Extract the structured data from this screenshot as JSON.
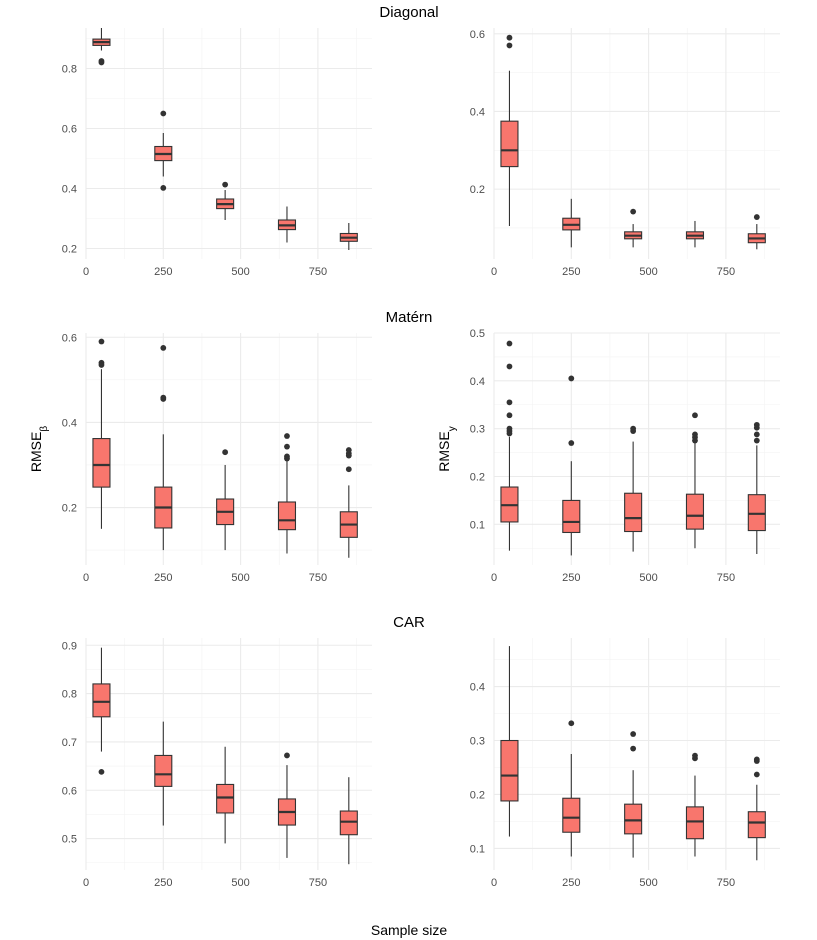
{
  "figure": {
    "xlabel": "Sample size",
    "colors": {
      "box_fill": "#F8766D",
      "box_stroke": "#333333",
      "grid_major": "#ebebeb",
      "grid_minor": "#f3f3f3",
      "outlier": "#333333"
    }
  },
  "sections": [
    {
      "title": "Diagonal"
    },
    {
      "title": "Matérn"
    },
    {
      "title": "CAR"
    }
  ],
  "chart_data": [
    {
      "type": "box",
      "section": "Diagonal",
      "panel": "left",
      "ylabel": "",
      "ylabel_sub": "",
      "xlim": [
        0,
        925
      ],
      "ylim": [
        0.165,
        0.935
      ],
      "xticks": [
        0,
        250,
        500,
        750
      ],
      "yticks": [
        0.2,
        0.4,
        0.6,
        0.8
      ],
      "ytick_labels": [
        "0.2",
        "0.4",
        "0.6",
        "0.8"
      ],
      "boxes": [
        {
          "x": 50,
          "lower": 0.86,
          "q1": 0.877,
          "median": 0.888,
          "q3": 0.898,
          "upper": 0.935,
          "outliers": [
            0.825,
            0.82
          ]
        },
        {
          "x": 250,
          "lower": 0.44,
          "q1": 0.493,
          "median": 0.515,
          "q3": 0.54,
          "upper": 0.585,
          "outliers": [
            0.65,
            0.402
          ]
        },
        {
          "x": 450,
          "lower": 0.295,
          "q1": 0.333,
          "median": 0.348,
          "q3": 0.365,
          "upper": 0.395,
          "outliers": [
            0.413
          ]
        },
        {
          "x": 650,
          "lower": 0.22,
          "q1": 0.263,
          "median": 0.277,
          "q3": 0.295,
          "upper": 0.34,
          "outliers": []
        },
        {
          "x": 850,
          "lower": 0.195,
          "q1": 0.224,
          "median": 0.236,
          "q3": 0.25,
          "upper": 0.285,
          "outliers": []
        }
      ]
    },
    {
      "type": "box",
      "section": "Diagonal",
      "panel": "right",
      "ylabel": "",
      "ylabel_sub": "",
      "xlim": [
        0,
        925
      ],
      "ylim": [
        0.02,
        0.615
      ],
      "xticks": [
        0,
        250,
        500,
        750
      ],
      "yticks": [
        0.2,
        0.4,
        0.6
      ],
      "ytick_labels": [
        "0.2",
        "0.4",
        "0.6"
      ],
      "boxes": [
        {
          "x": 50,
          "lower": 0.105,
          "q1": 0.258,
          "median": 0.3,
          "q3": 0.375,
          "upper": 0.505,
          "outliers": [
            0.59,
            0.57
          ]
        },
        {
          "x": 250,
          "lower": 0.05,
          "q1": 0.095,
          "median": 0.108,
          "q3": 0.125,
          "upper": 0.175,
          "outliers": []
        },
        {
          "x": 450,
          "lower": 0.05,
          "q1": 0.072,
          "median": 0.08,
          "q3": 0.09,
          "upper": 0.11,
          "outliers": [
            0.142
          ]
        },
        {
          "x": 650,
          "lower": 0.05,
          "q1": 0.072,
          "median": 0.08,
          "q3": 0.09,
          "upper": 0.118,
          "outliers": []
        },
        {
          "x": 850,
          "lower": 0.045,
          "q1": 0.062,
          "median": 0.073,
          "q3": 0.085,
          "upper": 0.11,
          "outliers": [
            0.128
          ]
        }
      ]
    },
    {
      "type": "box",
      "section": "Matérn",
      "panel": "left",
      "ylabel": "RMSE",
      "ylabel_sub": "β",
      "xlim": [
        0,
        925
      ],
      "ylim": [
        0.065,
        0.61
      ],
      "xticks": [
        0,
        250,
        500,
        750
      ],
      "yticks": [
        0.2,
        0.4,
        0.6
      ],
      "ytick_labels": [
        "0.2",
        "0.4",
        "0.6"
      ],
      "boxes": [
        {
          "x": 50,
          "lower": 0.15,
          "q1": 0.248,
          "median": 0.3,
          "q3": 0.362,
          "upper": 0.525,
          "outliers": [
            0.59,
            0.54,
            0.535
          ]
        },
        {
          "x": 250,
          "lower": 0.1,
          "q1": 0.152,
          "median": 0.2,
          "q3": 0.248,
          "upper": 0.372,
          "outliers": [
            0.575,
            0.458,
            0.455
          ]
        },
        {
          "x": 450,
          "lower": 0.1,
          "q1": 0.16,
          "median": 0.19,
          "q3": 0.22,
          "upper": 0.3,
          "outliers": [
            0.33
          ]
        },
        {
          "x": 650,
          "lower": 0.092,
          "q1": 0.148,
          "median": 0.17,
          "q3": 0.213,
          "upper": 0.31,
          "outliers": [
            0.368,
            0.343,
            0.32,
            0.315
          ]
        },
        {
          "x": 850,
          "lower": 0.082,
          "q1": 0.13,
          "median": 0.16,
          "q3": 0.19,
          "upper": 0.252,
          "outliers": [
            0.335,
            0.327,
            0.322,
            0.29
          ]
        }
      ]
    },
    {
      "type": "box",
      "section": "Matérn",
      "panel": "right",
      "ylabel": "RMSE",
      "ylabel_sub": "y",
      "xlim": [
        0,
        925
      ],
      "ylim": [
        0.015,
        0.5
      ],
      "xticks": [
        0,
        250,
        500,
        750
      ],
      "yticks": [
        0.1,
        0.2,
        0.3,
        0.4,
        0.5
      ],
      "ytick_labels": [
        "0.1",
        "0.2",
        "0.3",
        "0.4",
        "0.5"
      ],
      "boxes": [
        {
          "x": 50,
          "lower": 0.045,
          "q1": 0.105,
          "median": 0.14,
          "q3": 0.178,
          "upper": 0.283,
          "outliers": [
            0.478,
            0.43,
            0.355,
            0.328,
            0.3,
            0.295,
            0.29
          ]
        },
        {
          "x": 250,
          "lower": 0.035,
          "q1": 0.083,
          "median": 0.105,
          "q3": 0.15,
          "upper": 0.232,
          "outliers": [
            0.405,
            0.27
          ]
        },
        {
          "x": 450,
          "lower": 0.043,
          "q1": 0.085,
          "median": 0.113,
          "q3": 0.165,
          "upper": 0.273,
          "outliers": [
            0.3,
            0.295
          ]
        },
        {
          "x": 650,
          "lower": 0.05,
          "q1": 0.09,
          "median": 0.118,
          "q3": 0.163,
          "upper": 0.27,
          "outliers": [
            0.328,
            0.288,
            0.282,
            0.275
          ]
        },
        {
          "x": 850,
          "lower": 0.038,
          "q1": 0.087,
          "median": 0.122,
          "q3": 0.162,
          "upper": 0.265,
          "outliers": [
            0.308,
            0.302,
            0.288,
            0.275
          ]
        }
      ]
    },
    {
      "type": "box",
      "section": "CAR",
      "panel": "left",
      "ylabel": "",
      "ylabel_sub": "",
      "xlim": [
        0,
        925
      ],
      "ylim": [
        0.435,
        0.915
      ],
      "xticks": [
        0,
        250,
        500,
        750
      ],
      "yticks": [
        0.5,
        0.6,
        0.7,
        0.8,
        0.9
      ],
      "ytick_labels": [
        "0.5",
        "0.6",
        "0.7",
        "0.8",
        "0.9"
      ],
      "boxes": [
        {
          "x": 50,
          "lower": 0.68,
          "q1": 0.752,
          "median": 0.783,
          "q3": 0.82,
          "upper": 0.895,
          "outliers": [
            0.638
          ]
        },
        {
          "x": 250,
          "lower": 0.527,
          "q1": 0.608,
          "median": 0.633,
          "q3": 0.672,
          "upper": 0.742,
          "outliers": []
        },
        {
          "x": 450,
          "lower": 0.49,
          "q1": 0.553,
          "median": 0.585,
          "q3": 0.612,
          "upper": 0.69,
          "outliers": []
        },
        {
          "x": 650,
          "lower": 0.46,
          "q1": 0.528,
          "median": 0.555,
          "q3": 0.582,
          "upper": 0.652,
          "outliers": [
            0.672
          ]
        },
        {
          "x": 850,
          "lower": 0.447,
          "q1": 0.508,
          "median": 0.535,
          "q3": 0.557,
          "upper": 0.627,
          "outliers": []
        }
      ]
    },
    {
      "type": "box",
      "section": "CAR",
      "panel": "right",
      "ylabel": "",
      "ylabel_sub": "",
      "xlim": [
        0,
        925
      ],
      "ylim": [
        0.06,
        0.49
      ],
      "xticks": [
        0,
        250,
        500,
        750
      ],
      "yticks": [
        0.1,
        0.2,
        0.3,
        0.4
      ],
      "ytick_labels": [
        "0.1",
        "0.2",
        "0.3",
        "0.4"
      ],
      "boxes": [
        {
          "x": 50,
          "lower": 0.122,
          "q1": 0.188,
          "median": 0.235,
          "q3": 0.3,
          "upper": 0.475,
          "outliers": []
        },
        {
          "x": 250,
          "lower": 0.085,
          "q1": 0.13,
          "median": 0.157,
          "q3": 0.193,
          "upper": 0.275,
          "outliers": [
            0.332
          ]
        },
        {
          "x": 450,
          "lower": 0.083,
          "q1": 0.127,
          "median": 0.152,
          "q3": 0.182,
          "upper": 0.245,
          "outliers": [
            0.312,
            0.285
          ]
        },
        {
          "x": 650,
          "lower": 0.085,
          "q1": 0.118,
          "median": 0.15,
          "q3": 0.177,
          "upper": 0.235,
          "outliers": [
            0.272,
            0.267
          ]
        },
        {
          "x": 850,
          "lower": 0.078,
          "q1": 0.12,
          "median": 0.148,
          "q3": 0.168,
          "upper": 0.218,
          "outliers": [
            0.265,
            0.262,
            0.237
          ]
        }
      ]
    }
  ]
}
